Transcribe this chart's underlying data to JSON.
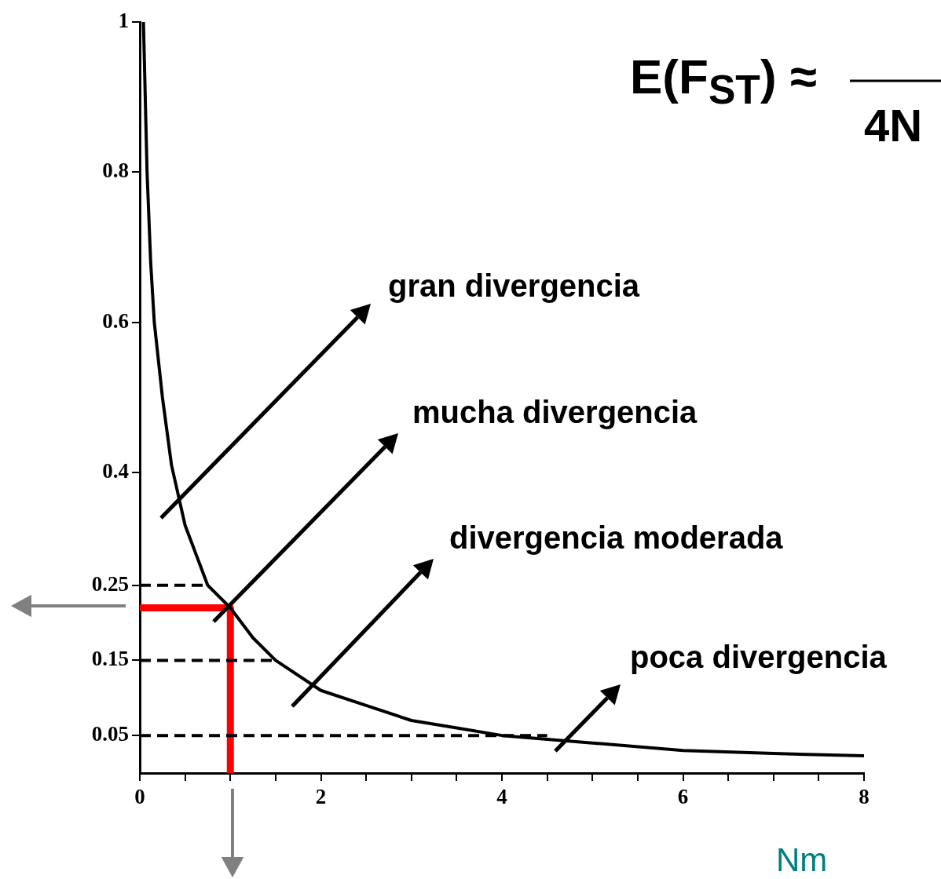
{
  "chart_data": {
    "type": "line",
    "xlabel": "Nm",
    "xlim": [
      0,
      8
    ],
    "xticks": [
      0,
      {
        "value": 0.5,
        "label": null
      },
      {
        "value": 1,
        "label": null
      },
      {
        "value": 1.5,
        "label": null
      },
      2,
      {
        "value": 2.5,
        "label": null
      },
      {
        "value": 3,
        "label": null
      },
      {
        "value": 3.5,
        "label": null
      },
      4,
      {
        "value": 4.5,
        "label": null
      },
      {
        "value": 5,
        "label": null
      },
      {
        "value": 5.5,
        "label": null
      },
      6,
      {
        "value": 6.5,
        "label": null
      },
      {
        "value": 7,
        "label": null
      },
      {
        "value": 7.5,
        "label": null
      },
      8
    ],
    "ylim": [
      0,
      1
    ],
    "yticks": [
      0.05,
      0.15,
      0.25,
      0.4,
      0.6,
      0.8,
      1
    ],
    "grid": false,
    "legend": false,
    "marker": "none",
    "series": [
      {
        "color": "#000000",
        "line_style": "solid",
        "x": [
          0.04,
          0.08,
          0.12,
          0.16,
          0.25,
          0.35,
          0.5,
          0.75,
          1,
          1.25,
          1.5,
          2,
          2.5,
          3,
          3.5,
          4,
          5,
          6,
          7,
          8
        ],
        "values": [
          1,
          0.8,
          0.68,
          0.6,
          0.5,
          0.41,
          0.33,
          0.25,
          0.22,
          0.18,
          0.15,
          0.11,
          0.09,
          0.07,
          0.06,
          0.05,
          0.04,
          0.03,
          0.026,
          0.023
        ]
      },
      {
        "color": "#000000",
        "line_style": "dashed",
        "x": [
          0,
          0.75
        ],
        "values": [
          0.25,
          0.25
        ]
      },
      {
        "color": "#000000",
        "line_style": "dashed",
        "x": [
          0,
          1.5
        ],
        "values": [
          0.15,
          0.15
        ]
      },
      {
        "color": "#000000",
        "line_style": "dashed",
        "x": [
          0,
          4.5
        ],
        "values": [
          0.05,
          0.05
        ]
      },
      {
        "color": "#ff0000",
        "line_style": "solid",
        "x": [
          0,
          1,
          1
        ],
        "values": [
          0.22,
          0.22,
          0
        ]
      }
    ],
    "annotations": [
      "E(F$_{ST}$) ≈",
      "4N",
      "gran divergencia",
      "mucha divergencia",
      "divergencia moderada",
      "poca divergencia"
    ]
  }
}
